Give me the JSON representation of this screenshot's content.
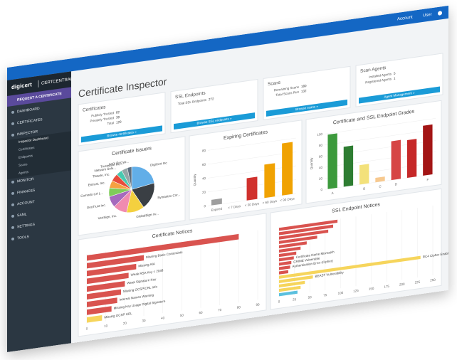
{
  "header": {
    "logo": "digicert",
    "product": "CERTCENTRAL",
    "menu": [
      "Account",
      "User"
    ]
  },
  "sidebar": {
    "items": [
      {
        "label": "REQUEST A CERTIFICATE"
      },
      {
        "label": "DASHBOARD"
      },
      {
        "label": "CERTIFICATES"
      },
      {
        "label": "INSPECTOR"
      },
      {
        "label": "Inspector Dashboard",
        "sub": true
      },
      {
        "label": "Certificates",
        "sub": true
      },
      {
        "label": "Endpoints",
        "sub": true
      },
      {
        "label": "Scans",
        "sub": true
      },
      {
        "label": "Agents",
        "sub": true
      },
      {
        "label": "MONITOR"
      },
      {
        "label": "FINANCES"
      },
      {
        "label": "ACCOUNT"
      },
      {
        "label": "SAML"
      },
      {
        "label": "SETTINGS"
      },
      {
        "label": "TOOLS"
      }
    ]
  },
  "page": {
    "title": "Certificate Inspector"
  },
  "cards": [
    {
      "title": "Certificates",
      "rows": [
        {
          "label": "Publicly Trusted",
          "value": 82
        },
        {
          "label": "Privately Trusted",
          "value": 38
        },
        {
          "label": "Total",
          "value": 120
        }
      ],
      "button": "Browse certificates »"
    },
    {
      "title": "SSL Endpoints",
      "rows": [
        {
          "label": "Total SSL Endpoints",
          "value": 272
        }
      ],
      "button": "Browse SSL endpoints »"
    },
    {
      "title": "Scans",
      "rows": [
        {
          "label": "Remaining Scans",
          "value": 180
        },
        {
          "label": "Total Scans Run",
          "value": 132
        }
      ],
      "button": "Browse scans »"
    },
    {
      "title": "Scan Agents",
      "rows": [
        {
          "label": "Installed Agents",
          "value": 5
        },
        {
          "label": "Registered Agents",
          "value": 1
        }
      ],
      "button": "Agent Management »"
    }
  ],
  "charts": [
    {
      "type": "pie",
      "title": "Certificate Issuers",
      "categories": [
        "DigiCert Inc",
        "Symantec Cor...",
        "GlobalSign nv...",
        "VeriSign, Inc.",
        "GeoTrust Inc.",
        "Comodo CA L...",
        "Entrust, Inc.",
        "Thawte, Inc.",
        "Network Solu...",
        "Trustwave Ho...",
        "Let's Encryp..."
      ],
      "values": [
        22,
        18,
        12,
        10,
        8,
        6,
        5,
        5,
        4,
        4,
        3
      ],
      "colors": [
        "#62aee8",
        "#3a3f44",
        "#f4d03f",
        "#f08bb0",
        "#a569bd",
        "#7fcc5a",
        "#f5a142",
        "#e74c3c",
        "#48c9b0",
        "#95a5a6",
        "#5d6d7e"
      ]
    },
    {
      "type": "bar",
      "title": "Expiring Certificates",
      "ylabel": "Quantity",
      "categories": [
        "Expired",
        "< 7 Days",
        "< 30 Days",
        "< 60 Days",
        "< 90 Days"
      ],
      "values": [
        8,
        0,
        32,
        48,
        75
      ],
      "colors": [
        "#9e9e9e",
        "#d0312d",
        "#d0312d",
        "#f0a202",
        "#f0a202"
      ],
      "ylim": [
        0,
        80
      ],
      "yticks": [
        0,
        20,
        40,
        60,
        80
      ],
      "grid": true
    },
    {
      "type": "bar",
      "title": "Certificate and SSL Endpoint Grades",
      "ylabel": "Quantity",
      "categories": [
        "A",
        null,
        "B",
        "C",
        "D",
        null,
        "F"
      ],
      "values": [
        98,
        72,
        35,
        8,
        70,
        68,
        90
      ],
      "colors": [
        "#3c9a3c",
        "#2e7d32",
        "#f3e17a",
        "#f7c98f",
        "#d64545",
        "#c62828",
        "#a31515"
      ],
      "ylim": [
        0,
        100
      ],
      "yticks": [
        0,
        20,
        40,
        60,
        80,
        100
      ],
      "grid": true
    },
    {
      "type": "hbar",
      "title": "Certificate Notices",
      "categories": [
        null,
        "Missing Basic Constraints",
        "Missing AIA",
        "Weak RSA Key < 2048",
        "Weak Signature Key",
        "Missing OCSP/CRL Info",
        "Internal Names Warning",
        "Missing Key Usage Digital Signature",
        "Missing OCSP URL"
      ],
      "values": [
        80,
        30,
        26,
        22,
        20,
        18,
        16,
        13,
        8
      ],
      "colors": [
        "#d9534f",
        "#d9534f",
        "#d9534f",
        "#d9534f",
        "#d9534f",
        "#d9534f",
        "#d9534f",
        "#d9534f",
        "#f6d55c"
      ],
      "xlim": [
        0,
        90
      ],
      "xticks": [
        0,
        10,
        20,
        30,
        40,
        50,
        60,
        70,
        80,
        90
      ],
      "grid": true
    },
    {
      "type": "hbar",
      "title": "SSL Endpoint Notices",
      "categories": [
        null,
        null,
        null,
        null,
        null,
        null,
        null,
        "Certificate Name Mismatch",
        "CRIME Vulnerable",
        "Authentication Error (Cipher)",
        null,
        "RC4 Cipher Enabled",
        "BEAST Vulnerability",
        null,
        null,
        null
      ],
      "values": [
        95,
        88,
        80,
        62,
        45,
        35,
        28,
        24,
        20,
        18,
        15,
        230,
        55,
        42,
        35,
        30
      ],
      "colors": [
        "#d9534f",
        "#d9534f",
        "#d9534f",
        "#d9534f",
        "#d9534f",
        "#d9534f",
        "#d9534f",
        "#d9534f",
        "#d9534f",
        "#d9534f",
        "#d9534f",
        "#f6d55c",
        "#f6d55c",
        "#f6d55c",
        "#f6d55c",
        "#5bc0de"
      ],
      "xlim": [
        0,
        250
      ],
      "xticks": [
        0,
        25,
        50,
        75,
        100,
        125,
        150,
        175,
        200,
        225,
        250
      ],
      "grid": true
    }
  ]
}
